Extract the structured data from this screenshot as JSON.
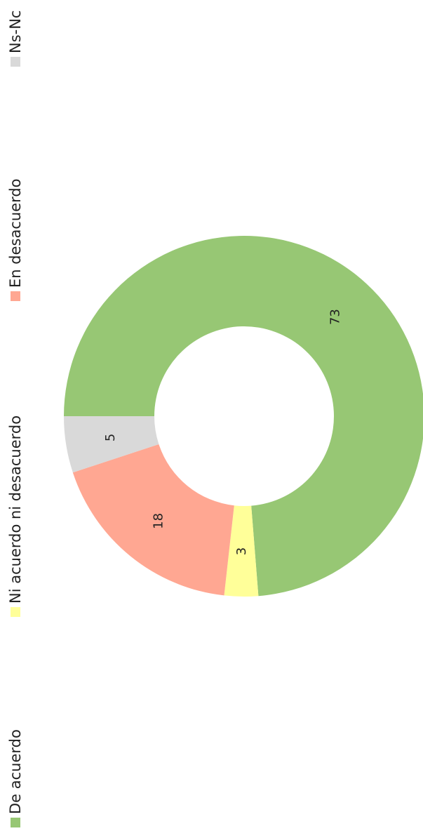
{
  "chart_data": {
    "type": "donut",
    "series": [
      {
        "name": "De acuerdo",
        "color": "#97c774",
        "values": [
          73
        ]
      },
      {
        "name": "Ni acuerdo ni desacuerdo",
        "color": "#ffff99",
        "values": [
          3
        ]
      },
      {
        "name": "En desacuerdo",
        "color": "#ffa792",
        "values": [
          18
        ]
      },
      {
        "name": "Ns-Nc",
        "color": "#d9d9d9",
        "values": [
          5
        ]
      }
    ]
  }
}
